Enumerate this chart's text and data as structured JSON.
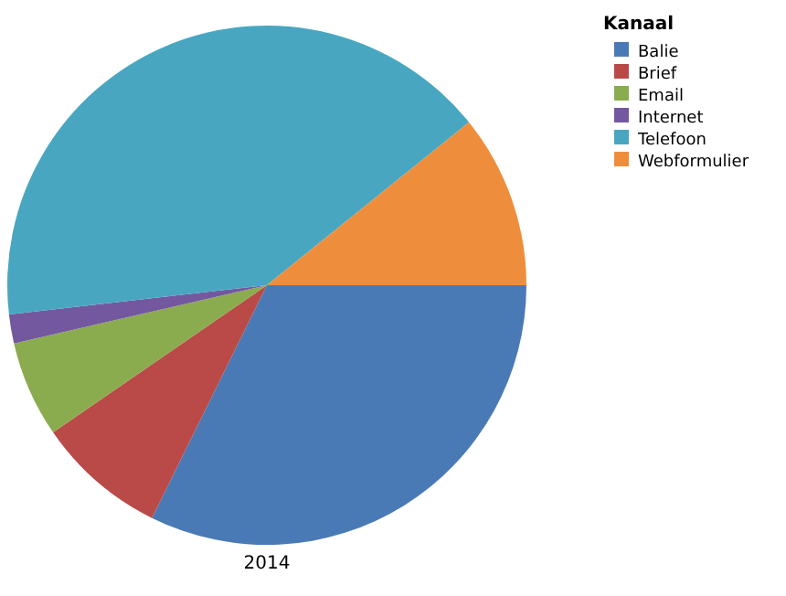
{
  "chart_data": {
    "type": "pie",
    "xlabel": "2014",
    "legend_title": "Kanaal",
    "legend": "top right",
    "categories": [
      "Balie",
      "Brief",
      "Email",
      "Internet",
      "Telefoon",
      "Webformulier"
    ],
    "values": [
      32.3,
      8.1,
      6.0,
      1.8,
      41.0,
      10.8
    ],
    "colors": [
      "#4a7ab5",
      "#b94a48",
      "#8bac4e",
      "#7358a0",
      "#48a6c1",
      "#ee8e3d"
    ]
  }
}
